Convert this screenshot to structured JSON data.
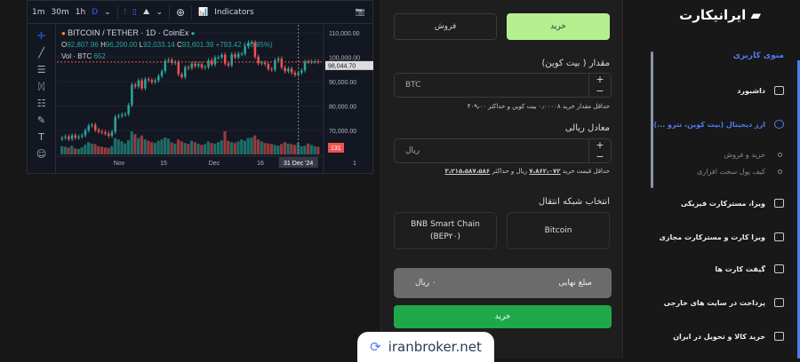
{
  "toolbar": {
    "intervals": [
      "1m",
      "30m",
      "1h",
      "D"
    ],
    "active_interval": "D",
    "indicators_label": "Indicators"
  },
  "chart": {
    "symbol": "BITCOIN / TETHER · 1D · CoinEx",
    "ohlc": {
      "o_label": "O",
      "o": "92,807.96",
      "h_label": "H",
      "h": "96,200.00",
      "l_label": "L",
      "l": "92,033.14",
      "c_label": "C",
      "c": "93,601.39",
      "change": "+793.42 (+0.85%)"
    },
    "vol_label": "Vol · BTC",
    "vol": "652",
    "last_price": "98,044.70",
    "vol_badge": "131",
    "crosshair_date": "31 Dec '24"
  },
  "chart_data": {
    "type": "candlestick",
    "y_ticks": [
      "110,000.00",
      "100,000.00",
      "90,000.00",
      "80,000.00",
      "70,000.00"
    ],
    "x_ticks": [
      "Nov",
      "15",
      "Dec",
      "16",
      "1"
    ],
    "ylim": [
      60000,
      112000
    ],
    "closes": [
      67000,
      67500,
      66500,
      68000,
      67000,
      67500,
      68000,
      70000,
      72000,
      72300,
      70200,
      69500,
      69300,
      68700,
      67800,
      69400,
      75600,
      76000,
      76500,
      76700,
      80400,
      88700,
      88000,
      90500,
      87300,
      91000,
      90600,
      89800,
      90500,
      92300,
      94300,
      98500,
      98900,
      97700,
      98000,
      93000,
      91900,
      95900,
      95600,
      97400,
      96400,
      97200,
      95800,
      96000,
      98700,
      97000,
      99900,
      99900,
      101000,
      97400,
      96700,
      101200,
      100000,
      101400,
      101400,
      104400,
      106000,
      106100,
      100200,
      97500,
      97800,
      97200,
      95200,
      94900,
      98700,
      99400,
      95800,
      94200,
      95300,
      93700,
      92800,
      93600,
      94600,
      98200,
      98100,
      98200,
      98300,
      98000
    ],
    "volumes": [
      30,
      28,
      25,
      32,
      22,
      20,
      26,
      35,
      45,
      40,
      38,
      30,
      28,
      26,
      24,
      30,
      60,
      55,
      48,
      40,
      52,
      85,
      75,
      60,
      70,
      55,
      50,
      45,
      42,
      50,
      55,
      62,
      58,
      45,
      40,
      55,
      48,
      42,
      38,
      50,
      45,
      40,
      35,
      38,
      48,
      42,
      40,
      45,
      52,
      85,
      50,
      45,
      42,
      48,
      55,
      50,
      60,
      62,
      70,
      55,
      48,
      42,
      40,
      38,
      35,
      32,
      38,
      45,
      40,
      38,
      35,
      42,
      30,
      32,
      40,
      35,
      30,
      28
    ],
    "colors": {
      "up": "#26a69a",
      "down": "#ef5350"
    }
  },
  "form": {
    "buy_tab": "خرید",
    "sell_tab": "فروش",
    "amount_label": "مقدار ( بیت کوین)",
    "amount_placeholder": "BTC",
    "amount_hint": "حداقل مقدار خرید ۰٫۰۰۰۰۸ بیت کوین و حداکثر ۴۰۹٫۰۰",
    "rial_label": "معادل ریالی",
    "rial_placeholder": "ریال",
    "rial_hint_prefix": "حداقل قیمت خرید",
    "rial_min": "۷،۸۶۲،۰۷۲",
    "rial_mid": "ریال و حداکثر",
    "rial_max": "۳،۲۱۵،۵۸۷،۵۸۶",
    "network_label": "انتخاب شبکه انتقال",
    "networks": [
      "Bitcoin",
      "BNB Smart Chain (BEP۲۰)"
    ],
    "final_label": "مبلغ نهایی",
    "final_value": "۰ ریال",
    "submit": "خرید",
    "accent": "#b6ef8f",
    "submit_color": "#1fa84a"
  },
  "sidebar": {
    "logo": "ایرانیکارت",
    "menu_title": "منوی کاربری",
    "items": [
      {
        "label": "داشبورد"
      },
      {
        "label": "ارز دیجیتال (بیت کوین، تترو ...)",
        "active": true
      },
      {
        "label": "ویزا، مسترکارت فیزیکی"
      },
      {
        "label": "ویزا کارت و مسترکارت مجازی"
      },
      {
        "label": "گیفت کارت ها"
      },
      {
        "label": "پرداخت در سایت های خارجی"
      },
      {
        "label": "خرید کالا و تحویل در ایران"
      }
    ],
    "subitems": [
      "خرید و فروش",
      "کیف پول سخت افزاری"
    ],
    "accent": "#4f7df0"
  },
  "watermark": "iranbroker.net"
}
